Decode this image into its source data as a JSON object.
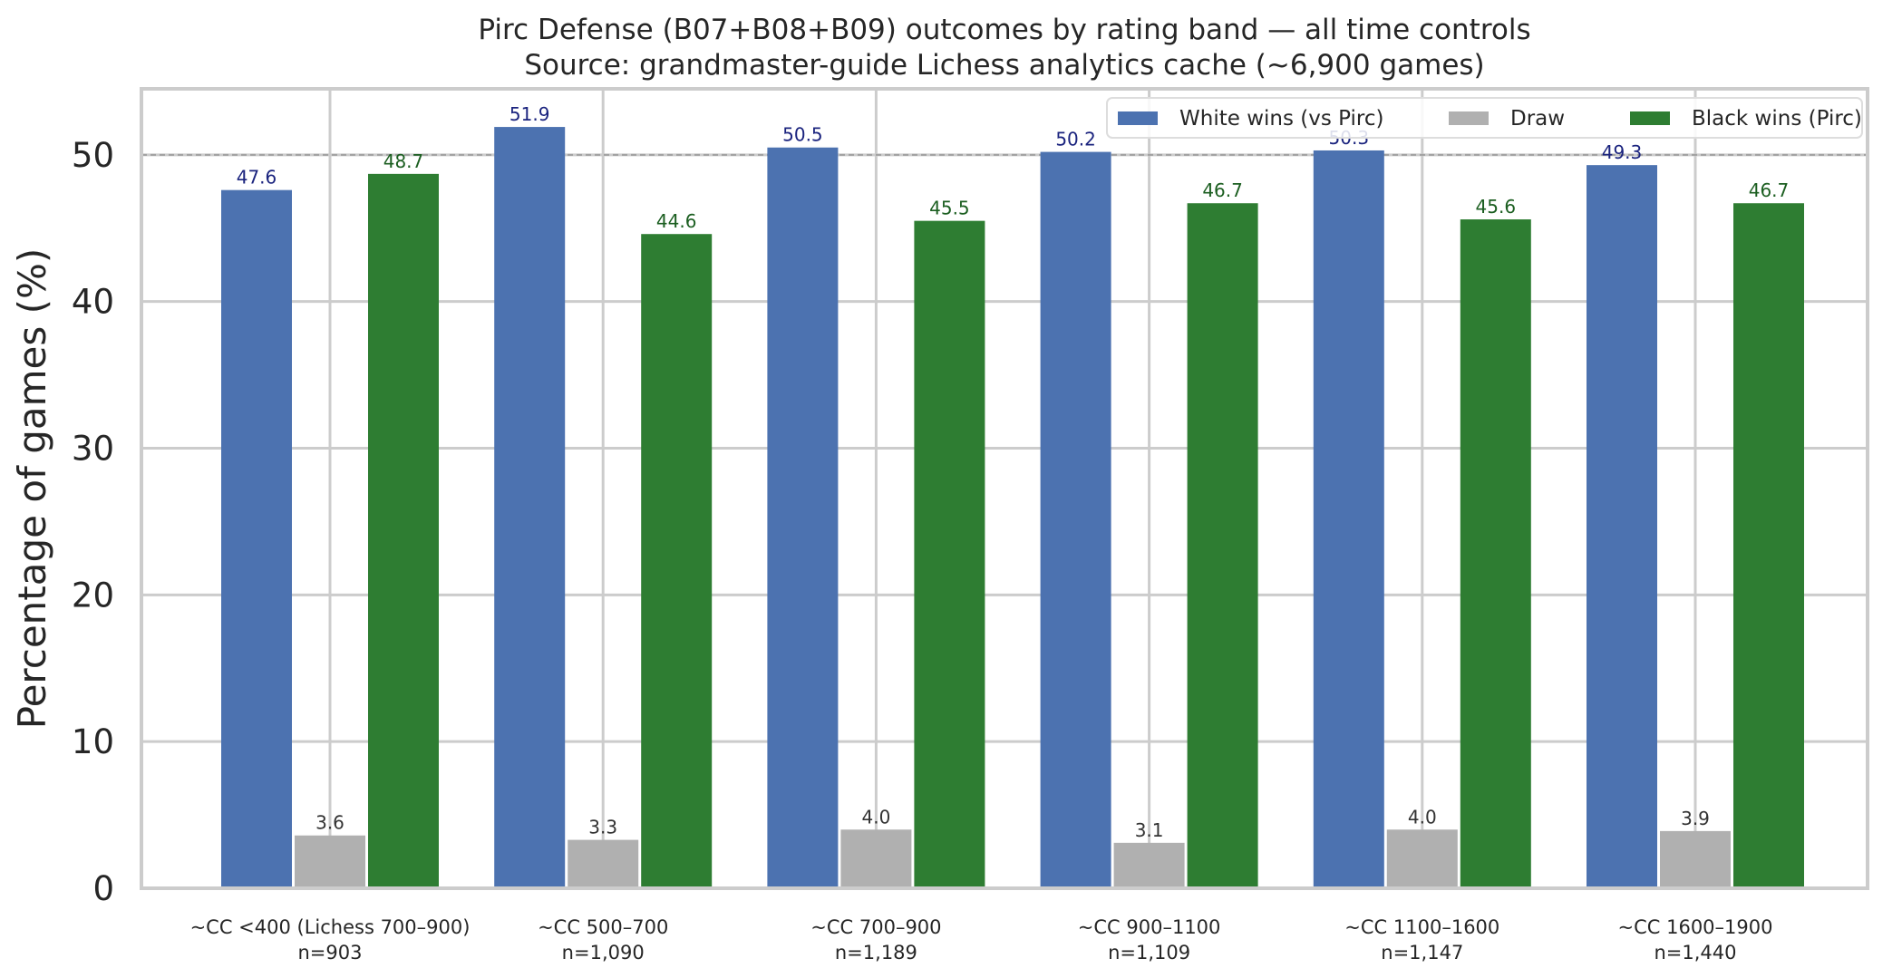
{
  "chart_data": {
    "type": "bar",
    "title_lines": [
      "Pirc Defense (B07+B08+B09) outcomes by rating band — all time controls",
      "Source: grandmaster-guide Lichess analytics cache (~6,900 games)"
    ],
    "ylabel": "Percentage of games (%)",
    "xlabel": "",
    "ylim": [
      0,
      54.5
    ],
    "yticks": [
      0,
      10,
      20,
      30,
      40,
      50
    ],
    "grid": true,
    "reference_line": 50,
    "legend_position": "top-right",
    "categories": [
      [
        "~CC <400 (Lichess 700–900)",
        "n=903"
      ],
      [
        "~CC 500–700",
        "n=1,090"
      ],
      [
        "~CC 700–900",
        "n=1,189"
      ],
      [
        "~CC 900–1100",
        "n=1,109"
      ],
      [
        "~CC 1100–1600",
        "n=1,147"
      ],
      [
        "~CC 1600–1900",
        "n=1,440"
      ]
    ],
    "series": [
      {
        "name": "White wins (vs Pirc)",
        "color": "#4c72b0",
        "label_color": "#1a237e",
        "values": [
          47.6,
          51.9,
          50.5,
          50.2,
          50.3,
          49.3
        ]
      },
      {
        "name": "Draw",
        "color": "#b0b0b0",
        "label_color": "#333333",
        "values": [
          3.6,
          3.3,
          4.0,
          3.1,
          4.0,
          3.9
        ]
      },
      {
        "name": "Black wins (Pirc)",
        "color": "#2e7d32",
        "label_color": "#1b5e20",
        "values": [
          48.7,
          44.6,
          45.5,
          46.7,
          45.6,
          46.7
        ]
      }
    ]
  }
}
